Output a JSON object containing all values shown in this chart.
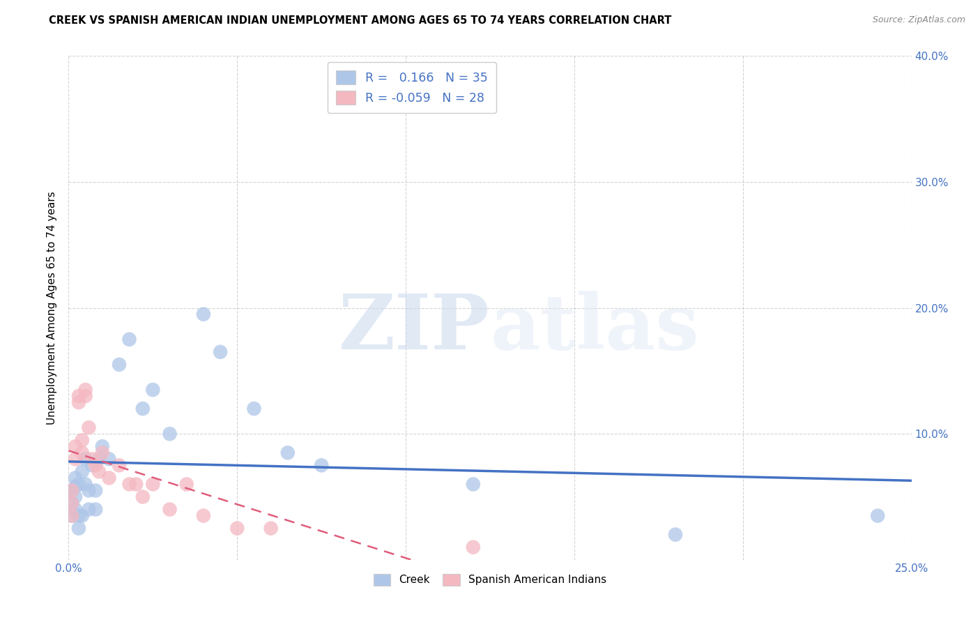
{
  "title": "CREEK VS SPANISH AMERICAN INDIAN UNEMPLOYMENT AMONG AGES 65 TO 74 YEARS CORRELATION CHART",
  "source": "Source: ZipAtlas.com",
  "ylabel": "Unemployment Among Ages 65 to 74 years",
  "xlim": [
    0.0,
    0.25
  ],
  "ylim": [
    0.0,
    0.4
  ],
  "xticks": [
    0.0,
    0.05,
    0.1,
    0.15,
    0.2,
    0.25
  ],
  "yticks": [
    0.0,
    0.1,
    0.2,
    0.3,
    0.4
  ],
  "creek_color": "#aec6e8",
  "creek_line_color": "#4472c4",
  "spanish_color": "#f4b8c1",
  "spanish_line_color": "#e05c7a",
  "watermark_zip": "ZIP",
  "watermark_atlas": "atlas",
  "legend_R_creek": "0.166",
  "legend_N_creek": "35",
  "legend_R_spanish": "-0.059",
  "legend_N_spanish": "28",
  "legend_label_creek": "Creek",
  "legend_label_spanish": "Spanish American Indians",
  "creek_x": [
    0.001,
    0.001,
    0.001,
    0.002,
    0.002,
    0.002,
    0.002,
    0.003,
    0.003,
    0.003,
    0.004,
    0.004,
    0.005,
    0.005,
    0.006,
    0.006,
    0.007,
    0.008,
    0.008,
    0.009,
    0.01,
    0.012,
    0.015,
    0.018,
    0.022,
    0.025,
    0.03,
    0.04,
    0.045,
    0.055,
    0.065,
    0.075,
    0.12,
    0.18,
    0.24
  ],
  "creek_y": [
    0.055,
    0.045,
    0.035,
    0.065,
    0.058,
    0.05,
    0.04,
    0.06,
    0.035,
    0.025,
    0.07,
    0.035,
    0.08,
    0.06,
    0.055,
    0.04,
    0.075,
    0.055,
    0.04,
    0.08,
    0.09,
    0.08,
    0.155,
    0.175,
    0.12,
    0.135,
    0.1,
    0.195,
    0.165,
    0.12,
    0.085,
    0.075,
    0.06,
    0.02,
    0.035
  ],
  "spanish_x": [
    0.001,
    0.001,
    0.001,
    0.002,
    0.002,
    0.003,
    0.003,
    0.004,
    0.004,
    0.005,
    0.005,
    0.006,
    0.007,
    0.008,
    0.009,
    0.01,
    0.012,
    0.015,
    0.018,
    0.02,
    0.022,
    0.025,
    0.03,
    0.035,
    0.04,
    0.05,
    0.06,
    0.12
  ],
  "spanish_y": [
    0.055,
    0.045,
    0.035,
    0.09,
    0.08,
    0.13,
    0.125,
    0.095,
    0.085,
    0.135,
    0.13,
    0.105,
    0.08,
    0.075,
    0.07,
    0.085,
    0.065,
    0.075,
    0.06,
    0.06,
    0.05,
    0.06,
    0.04,
    0.06,
    0.035,
    0.025,
    0.025,
    0.01
  ]
}
